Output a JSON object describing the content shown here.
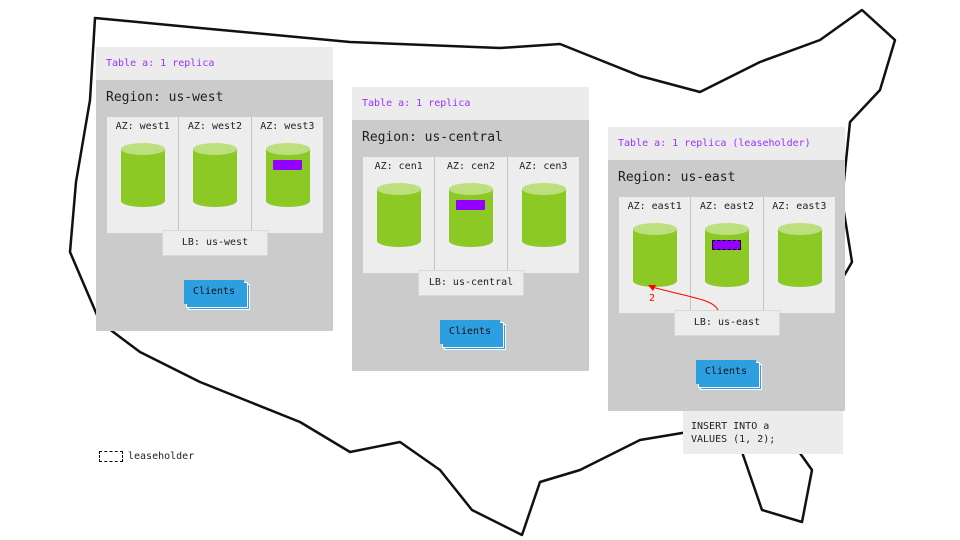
{
  "regions": [
    {
      "table": "Table a: 1 replica",
      "title": "Region: us-west",
      "azs": [
        "AZ: west1",
        "AZ: west2",
        "AZ: west3"
      ],
      "replica_az": 2,
      "leaseholder": false,
      "lb": "LB: us-west",
      "clients": "Clients"
    },
    {
      "table": "Table a: 1 replica",
      "title": "Region: us-central",
      "azs": [
        "AZ: cen1",
        "AZ: cen2",
        "AZ: cen3"
      ],
      "replica_az": 1,
      "leaseholder": false,
      "lb": "LB: us-central",
      "clients": "Clients"
    },
    {
      "table": "Table a: 1 replica (leaseholder)",
      "title": "Region: us-east",
      "azs": [
        "AZ: east1",
        "AZ: east2",
        "AZ: east3"
      ],
      "replica_az": 1,
      "leaseholder": true,
      "lb": "LB: us-east",
      "clients": "Clients"
    }
  ],
  "arrow_label": "2",
  "query": "INSERT INTO a\nVALUES (1, 2);",
  "legend": "leaseholder",
  "colors": {
    "replica": "#9400ff",
    "cylinder": "#8cc925",
    "clients": "#2d9fe0",
    "arrow": "#ff0000",
    "table_label": "#9b30ff"
  }
}
